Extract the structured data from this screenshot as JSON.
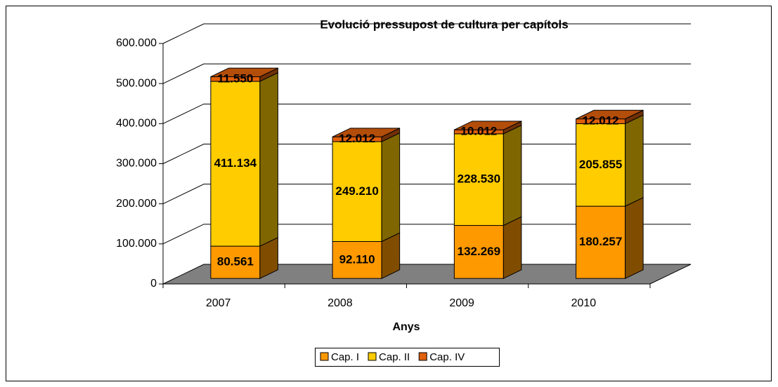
{
  "chart_data": {
    "type": "bar3d_stacked",
    "title": "Evolució pressupost de cultura per capítols",
    "x_label": "Anys",
    "categories": [
      "2007",
      "2008",
      "2009",
      "2010"
    ],
    "series": [
      {
        "name": "Cap. I",
        "color": "#FF9900",
        "values": [
          80561,
          92110,
          132269,
          180257
        ],
        "value_labels": [
          "80.561",
          "92.110",
          "132.269",
          "180.257"
        ]
      },
      {
        "name": "Cap. II",
        "color": "#FFCC00",
        "values": [
          411134,
          249210,
          228530,
          205855
        ],
        "value_labels": [
          "411.134",
          "249.210",
          "228.530",
          "205.855"
        ]
      },
      {
        "name": "Cap. IV",
        "color": "#E0600C",
        "values": [
          11550,
          12012,
          10012,
          12012
        ],
        "value_labels": [
          "11.550",
          "12.012",
          "10.012",
          "12.012"
        ]
      }
    ],
    "ylim": [
      0,
      600000
    ],
    "yticks": [
      0,
      {
        "value": 100000,
        "label": "100.000"
      },
      {
        "value": 200000,
        "label": "200.000"
      },
      {
        "value": 300000,
        "label": "300.000"
      },
      {
        "value": 400000,
        "label": "400.000"
      },
      {
        "value": 500000,
        "label": "500.000"
      },
      {
        "value": 600000,
        "label": "600.000"
      }
    ],
    "grid": true,
    "legend": "bottom"
  }
}
